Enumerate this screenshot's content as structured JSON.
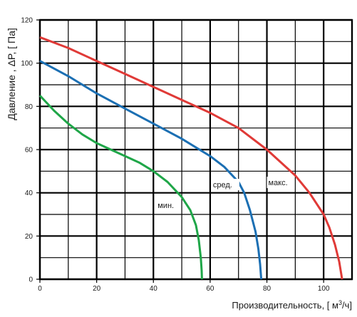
{
  "chart_data": {
    "type": "line",
    "xlabel": "Производительность, [ м³/ч]",
    "ylabel": "Давление , ΔP, [ Па]",
    "xlim": [
      0,
      110
    ],
    "ylim": [
      0,
      120
    ],
    "x_ticks": [
      0,
      20,
      40,
      60,
      80,
      100
    ],
    "y_ticks": [
      0,
      20,
      40,
      60,
      80,
      100,
      120
    ],
    "minor_x_step": 10,
    "minor_y_step": 10,
    "grid": true,
    "series": [
      {
        "name": "мин.",
        "color": "#1fa648",
        "points": [
          [
            0,
            85
          ],
          [
            5,
            78
          ],
          [
            10,
            72
          ],
          [
            15,
            67
          ],
          [
            20,
            63
          ],
          [
            25,
            60
          ],
          [
            30,
            57
          ],
          [
            35,
            54
          ],
          [
            40,
            50
          ],
          [
            45,
            45
          ],
          [
            50,
            38
          ],
          [
            53,
            32
          ],
          [
            55,
            25
          ],
          [
            56,
            18
          ],
          [
            56.7,
            10
          ],
          [
            57,
            4
          ],
          [
            57.1,
            0
          ]
        ]
      },
      {
        "name": "сред.",
        "color": "#1b6fb3",
        "points": [
          [
            0,
            101
          ],
          [
            10,
            94
          ],
          [
            20,
            86
          ],
          [
            30,
            79
          ],
          [
            40,
            72
          ],
          [
            50,
            65
          ],
          [
            60,
            57
          ],
          [
            65,
            52
          ],
          [
            70,
            45
          ],
          [
            72,
            40
          ],
          [
            74,
            32
          ],
          [
            76,
            22
          ],
          [
            77,
            14
          ],
          [
            77.6,
            7
          ],
          [
            78,
            0
          ]
        ]
      },
      {
        "name": "макс.",
        "color": "#e03a37",
        "points": [
          [
            0,
            112
          ],
          [
            10,
            107
          ],
          [
            20,
            101
          ],
          [
            30,
            95
          ],
          [
            40,
            89
          ],
          [
            50,
            83
          ],
          [
            60,
            77
          ],
          [
            70,
            70
          ],
          [
            80,
            60
          ],
          [
            90,
            48
          ],
          [
            95,
            40
          ],
          [
            100,
            30
          ],
          [
            102,
            24
          ],
          [
            104,
            16
          ],
          [
            105.5,
            8
          ],
          [
            106.5,
            0
          ]
        ]
      }
    ]
  }
}
